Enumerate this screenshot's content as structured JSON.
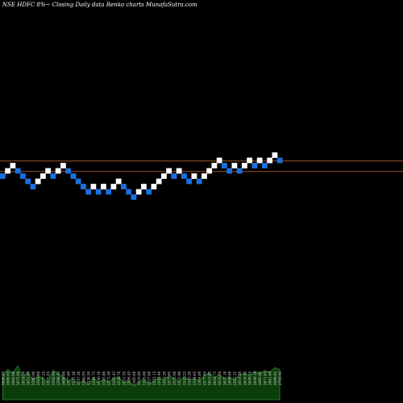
{
  "chart_data": {
    "type": "renko",
    "title": "NSE HDFC 8%~ Closing Daily data Renko charts MunafaSutra.com",
    "colors": {
      "background": "#000000",
      "up_brick": "#ffffff",
      "down_brick": "#1a6fe0",
      "reference_line": "#a0522d",
      "volume_fill": "#0b3d0b",
      "volume_line": "#2e8b2e"
    },
    "reference_lines": [
      2875,
      2706
    ],
    "bricks": [
      {
        "value": 2630,
        "direction": "down"
      },
      {
        "value": 2715,
        "direction": "up"
      },
      {
        "value": 2800,
        "direction": "up"
      },
      {
        "value": 2715,
        "direction": "down"
      },
      {
        "value": 2630,
        "direction": "down"
      },
      {
        "value": 2545,
        "direction": "down"
      },
      {
        "value": 2460,
        "direction": "down"
      },
      {
        "value": 2545,
        "direction": "up"
      },
      {
        "value": 2630,
        "direction": "up"
      },
      {
        "value": 2715,
        "direction": "up"
      },
      {
        "value": 2630,
        "direction": "down"
      },
      {
        "value": 2715,
        "direction": "up"
      },
      {
        "value": 2800,
        "direction": "up"
      },
      {
        "value": 2715,
        "direction": "down"
      },
      {
        "value": 2630,
        "direction": "down"
      },
      {
        "value": 2545,
        "direction": "down"
      },
      {
        "value": 2460,
        "direction": "down"
      },
      {
        "value": 2375,
        "direction": "down"
      },
      {
        "value": 2460,
        "direction": "up"
      },
      {
        "value": 2375,
        "direction": "down"
      },
      {
        "value": 2460,
        "direction": "up"
      },
      {
        "value": 2375,
        "direction": "down"
      },
      {
        "value": 2460,
        "direction": "up"
      },
      {
        "value": 2545,
        "direction": "up"
      },
      {
        "value": 2460,
        "direction": "down"
      },
      {
        "value": 2375,
        "direction": "down"
      },
      {
        "value": 2290,
        "direction": "down"
      },
      {
        "value": 2375,
        "direction": "up"
      },
      {
        "value": 2460,
        "direction": "up"
      },
      {
        "value": 2375,
        "direction": "down"
      },
      {
        "value": 2460,
        "direction": "up"
      },
      {
        "value": 2545,
        "direction": "up"
      },
      {
        "value": 2630,
        "direction": "up"
      },
      {
        "value": 2715,
        "direction": "up"
      },
      {
        "value": 2630,
        "direction": "down"
      },
      {
        "value": 2715,
        "direction": "up"
      },
      {
        "value": 2630,
        "direction": "down"
      },
      {
        "value": 2545,
        "direction": "down"
      },
      {
        "value": 2630,
        "direction": "up"
      },
      {
        "value": 2545,
        "direction": "down"
      },
      {
        "value": 2630,
        "direction": "up"
      },
      {
        "value": 2715,
        "direction": "up"
      },
      {
        "value": 2800,
        "direction": "up"
      },
      {
        "value": 2885,
        "direction": "up"
      },
      {
        "value": 2800,
        "direction": "down"
      },
      {
        "value": 2715,
        "direction": "down"
      },
      {
        "value": 2800,
        "direction": "up"
      },
      {
        "value": 2715,
        "direction": "down"
      },
      {
        "value": 2800,
        "direction": "up"
      },
      {
        "value": 2885,
        "direction": "up"
      },
      {
        "value": 2800,
        "direction": "down"
      },
      {
        "value": 2885,
        "direction": "up"
      },
      {
        "value": 2800,
        "direction": "down"
      },
      {
        "value": 2885,
        "direction": "up"
      },
      {
        "value": 2970,
        "direction": "up"
      },
      {
        "value": 2885,
        "direction": "down"
      }
    ],
    "volume_labels": [
      "2646.65",
      "2668.65",
      "2663.00",
      "2675.60",
      "2653.60",
      "2631.85",
      "2590.90",
      "2584.00",
      "2577.25",
      "2575.85",
      "2592.95",
      "2596.45",
      "2608.00",
      "2577.80",
      "2577.30",
      "2547.30",
      "2546.95",
      "2538.50",
      "2544.75",
      "2546.10",
      "2543.00",
      "2575.30",
      "2545.45",
      "2536.70",
      "2551.35",
      "2526.45",
      "2485.60",
      "2510.80",
      "2525.80",
      "2527.80",
      "2525.15",
      "2543.40",
      "2554.20",
      "2577.95",
      "2575.90",
      "2555.90",
      "2543.25",
      "2535.20",
      "2544.05",
      "2544.60",
      "2577.95",
      "2615.85",
      "2624.75",
      "2618.50",
      "2627.10",
      "2600.00",
      "2583.35",
      "2614.20",
      "2616.85",
      "2659.35",
      "2649.10",
      "2682.80",
      "2671.85",
      "2661.60",
      "2699.85",
      "2703.45"
    ],
    "volume_values": [
      28,
      34,
      30,
      38,
      25,
      31,
      22,
      27,
      24,
      20,
      33,
      29,
      26,
      21,
      24,
      18,
      22,
      17,
      25,
      19,
      23,
      20,
      24,
      26,
      19,
      22,
      15,
      20,
      23,
      18,
      21,
      25,
      22,
      27,
      24,
      20,
      26,
      22,
      24,
      21,
      27,
      30,
      25,
      28,
      24,
      26,
      22,
      28,
      30,
      27,
      32,
      29,
      33,
      31,
      36,
      34
    ]
  }
}
